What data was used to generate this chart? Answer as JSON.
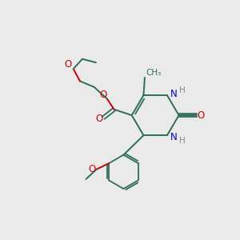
{
  "background_color": "#eaeaea",
  "bond_color": "#2d6e5a",
  "oxygen_color": "#cc0000",
  "nitrogen_color": "#0000bb",
  "h_color": "#888888",
  "figsize": [
    3.0,
    3.0
  ],
  "dpi": 100,
  "xlim": [
    0,
    10
  ],
  "ylim": [
    0,
    10
  ]
}
